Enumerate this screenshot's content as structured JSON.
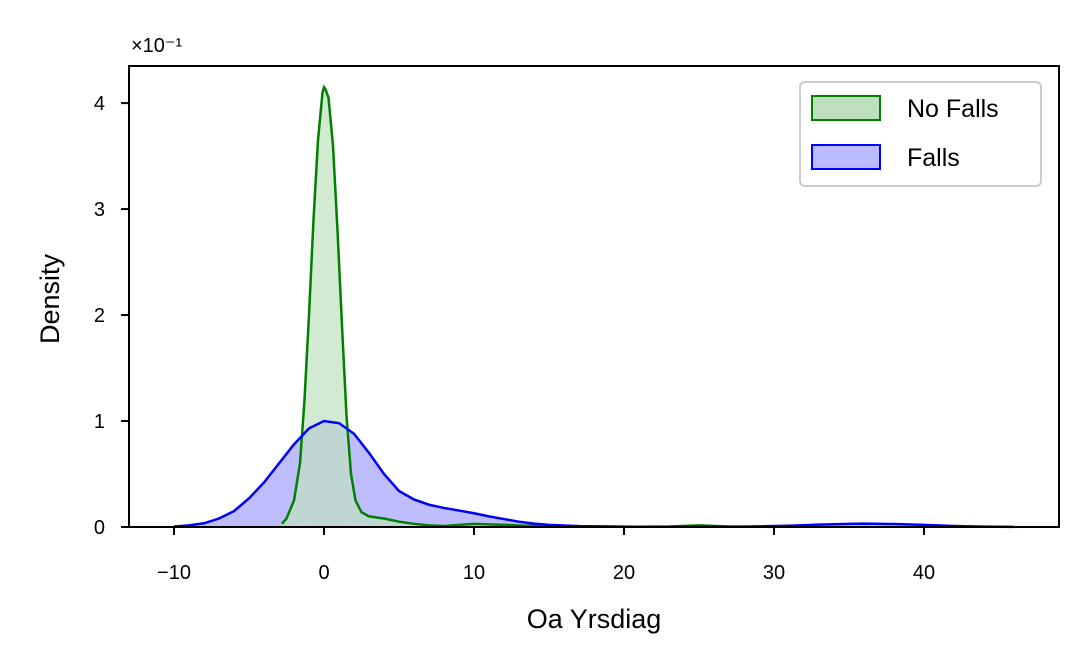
{
  "chart_data": {
    "type": "area",
    "title": "",
    "xlabel": "Oa Yrsdiag",
    "ylabel": "Density",
    "y_offset_label": "×10⁻¹",
    "xlim": [
      -13,
      49
    ],
    "ylim": [
      0,
      4.35
    ],
    "x_ticks": [
      -10,
      0,
      10,
      20,
      30,
      40
    ],
    "x_tick_labels": [
      "−10",
      "0",
      "10",
      "20",
      "30",
      "40"
    ],
    "y_ticks": [
      0,
      1,
      2,
      3,
      4
    ],
    "y_tick_labels": [
      "0",
      "1",
      "2",
      "3",
      "4"
    ],
    "grid": false,
    "legend_position": "top-right",
    "series": [
      {
        "name": "No Falls",
        "line_color": "#008000",
        "fill_color": "#bfe0bf",
        "points": [
          [
            -2.8,
            0.03
          ],
          [
            -2.5,
            0.08
          ],
          [
            -2.0,
            0.25
          ],
          [
            -1.6,
            0.6
          ],
          [
            -1.3,
            1.2
          ],
          [
            -1.0,
            2.0
          ],
          [
            -0.7,
            2.9
          ],
          [
            -0.4,
            3.65
          ],
          [
            -0.1,
            4.1
          ],
          [
            0.0,
            4.15
          ],
          [
            0.1,
            4.13
          ],
          [
            0.3,
            4.05
          ],
          [
            0.6,
            3.6
          ],
          [
            0.9,
            2.8
          ],
          [
            1.2,
            1.9
          ],
          [
            1.5,
            1.05
          ],
          [
            1.8,
            0.5
          ],
          [
            2.1,
            0.25
          ],
          [
            2.5,
            0.14
          ],
          [
            3.0,
            0.1
          ],
          [
            4.0,
            0.08
          ],
          [
            5.0,
            0.05
          ],
          [
            6.0,
            0.03
          ],
          [
            7.0,
            0.015
          ],
          [
            8.0,
            0.01
          ],
          [
            9.0,
            0.02
          ],
          [
            10.0,
            0.03
          ],
          [
            12.0,
            0.02
          ],
          [
            14.0,
            0.01
          ],
          [
            16.0,
            0.005
          ],
          [
            20.0,
            0.002
          ],
          [
            23.0,
            0.005
          ],
          [
            25.0,
            0.015
          ],
          [
            27.0,
            0.005
          ],
          [
            30.0,
            0.001
          ]
        ]
      },
      {
        "name": "Falls",
        "line_color": "#0000ff",
        "fill_color": "#bbbbff",
        "points": [
          [
            -10.0,
            0.005
          ],
          [
            -9.0,
            0.015
          ],
          [
            -8.0,
            0.035
          ],
          [
            -7.0,
            0.08
          ],
          [
            -6.0,
            0.15
          ],
          [
            -5.0,
            0.27
          ],
          [
            -4.0,
            0.42
          ],
          [
            -3.0,
            0.6
          ],
          [
            -2.0,
            0.78
          ],
          [
            -1.0,
            0.93
          ],
          [
            0.0,
            1.0
          ],
          [
            1.0,
            0.98
          ],
          [
            2.0,
            0.88
          ],
          [
            3.0,
            0.7
          ],
          [
            4.0,
            0.5
          ],
          [
            5.0,
            0.34
          ],
          [
            6.0,
            0.26
          ],
          [
            7.0,
            0.21
          ],
          [
            8.0,
            0.18
          ],
          [
            9.0,
            0.155
          ],
          [
            10.0,
            0.13
          ],
          [
            11.0,
            0.1
          ],
          [
            12.0,
            0.075
          ],
          [
            13.0,
            0.05
          ],
          [
            14.0,
            0.032
          ],
          [
            15.0,
            0.02
          ],
          [
            17.0,
            0.008
          ],
          [
            20.0,
            0.003
          ],
          [
            25.0,
            0.002
          ],
          [
            28.0,
            0.004
          ],
          [
            31.0,
            0.012
          ],
          [
            33.0,
            0.022
          ],
          [
            35.0,
            0.03
          ],
          [
            36.0,
            0.032
          ],
          [
            38.0,
            0.028
          ],
          [
            40.0,
            0.02
          ],
          [
            42.0,
            0.01
          ],
          [
            44.0,
            0.004
          ],
          [
            46.0,
            0.001
          ]
        ]
      }
    ]
  }
}
